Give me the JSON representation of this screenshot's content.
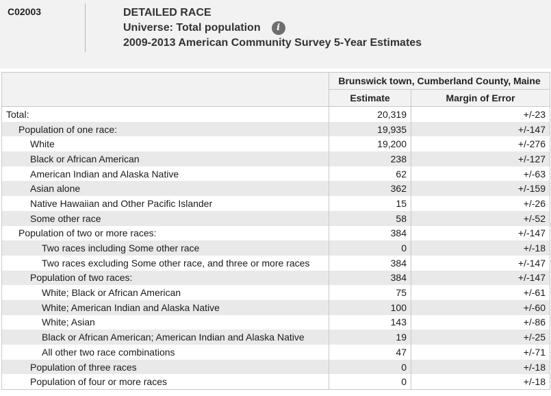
{
  "header": {
    "table_id": "C02003",
    "title": "DETAILED RACE",
    "universe": "Universe: Total population",
    "info_icon": "info-icon",
    "survey": "2009-2013 American Community Survey 5-Year Estimates"
  },
  "table": {
    "geography": "Brunswick town, Cumberland County, Maine",
    "col_estimate": "Estimate",
    "col_moe": "Margin of Error",
    "rows": [
      {
        "label": "Total:",
        "level": 0,
        "estimate": "20,319",
        "moe": "+/-23"
      },
      {
        "label": "Population of one race:",
        "level": 1,
        "estimate": "19,935",
        "moe": "+/-147"
      },
      {
        "label": "White",
        "level": 2,
        "estimate": "19,200",
        "moe": "+/-276"
      },
      {
        "label": "Black or African American",
        "level": 2,
        "estimate": "238",
        "moe": "+/-127"
      },
      {
        "label": "American Indian and Alaska Native",
        "level": 2,
        "estimate": "62",
        "moe": "+/-63"
      },
      {
        "label": "Asian alone",
        "level": 2,
        "estimate": "362",
        "moe": "+/-159"
      },
      {
        "label": "Native Hawaiian and Other Pacific Islander",
        "level": 2,
        "estimate": "15",
        "moe": "+/-26"
      },
      {
        "label": "Some other race",
        "level": 2,
        "estimate": "58",
        "moe": "+/-52"
      },
      {
        "label": "Population of two or more races:",
        "level": 1,
        "estimate": "384",
        "moe": "+/-147"
      },
      {
        "label": "Two races including Some other race",
        "level": 3,
        "estimate": "0",
        "moe": "+/-18"
      },
      {
        "label": "Two races excluding Some other race, and three or more races",
        "level": 3,
        "estimate": "384",
        "moe": "+/-147"
      },
      {
        "label": "Population of two races:",
        "level": 2,
        "estimate": "384",
        "moe": "+/-147"
      },
      {
        "label": "White; Black or African American",
        "level": 3,
        "estimate": "75",
        "moe": "+/-61"
      },
      {
        "label": "White; American Indian and Alaska Native",
        "level": 3,
        "estimate": "100",
        "moe": "+/-60"
      },
      {
        "label": "White; Asian",
        "level": 3,
        "estimate": "143",
        "moe": "+/-86"
      },
      {
        "label": "Black or African American; American Indian and Alaska Native",
        "level": 3,
        "estimate": "19",
        "moe": "+/-25"
      },
      {
        "label": "All other two race combinations",
        "level": 3,
        "estimate": "47",
        "moe": "+/-71"
      },
      {
        "label": "Population of three races",
        "level": 2,
        "estimate": "0",
        "moe": "+/-18"
      },
      {
        "label": "Population of four or more races",
        "level": 2,
        "estimate": "0",
        "moe": "+/-18"
      }
    ]
  }
}
